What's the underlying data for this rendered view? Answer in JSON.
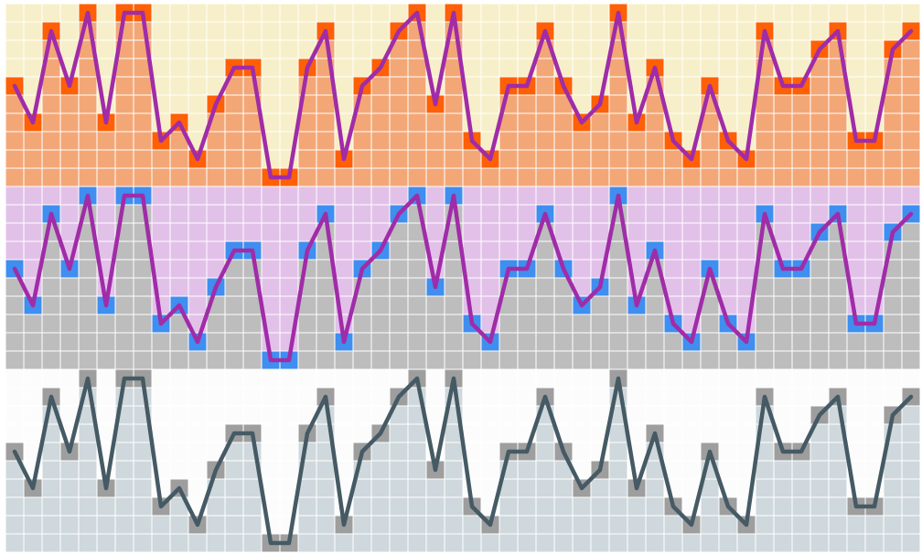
{
  "profile_heights": [
    5,
    3,
    8,
    5,
    9,
    3,
    9,
    9,
    2,
    3,
    1,
    4,
    6,
    6,
    0,
    0,
    6,
    8,
    1,
    5,
    6,
    8,
    9,
    4,
    9,
    2,
    1,
    5,
    5,
    8,
    5,
    3,
    4,
    9,
    3,
    6,
    2,
    1,
    5,
    2,
    1,
    8,
    5,
    5,
    7,
    8,
    2,
    2,
    7,
    8
  ],
  "max_height": 9,
  "panels": [
    {
      "name": "panel-orange",
      "sky": "#f7efc9",
      "fill": "#f3a777",
      "edge": "#ff5f05",
      "line": "#a02ca8"
    },
    {
      "name": "panel-violet",
      "sky": "#e2c1e9",
      "fill": "#bdbdbd",
      "edge": "#3f8ef0",
      "line": "#a02ca8"
    },
    {
      "name": "panel-slate",
      "sky": "#fcfcfc",
      "fill": "#cfd8dc",
      "edge": "#9e9e9e",
      "line": "#455a64"
    }
  ],
  "grid_line_color": "#ffffff"
}
